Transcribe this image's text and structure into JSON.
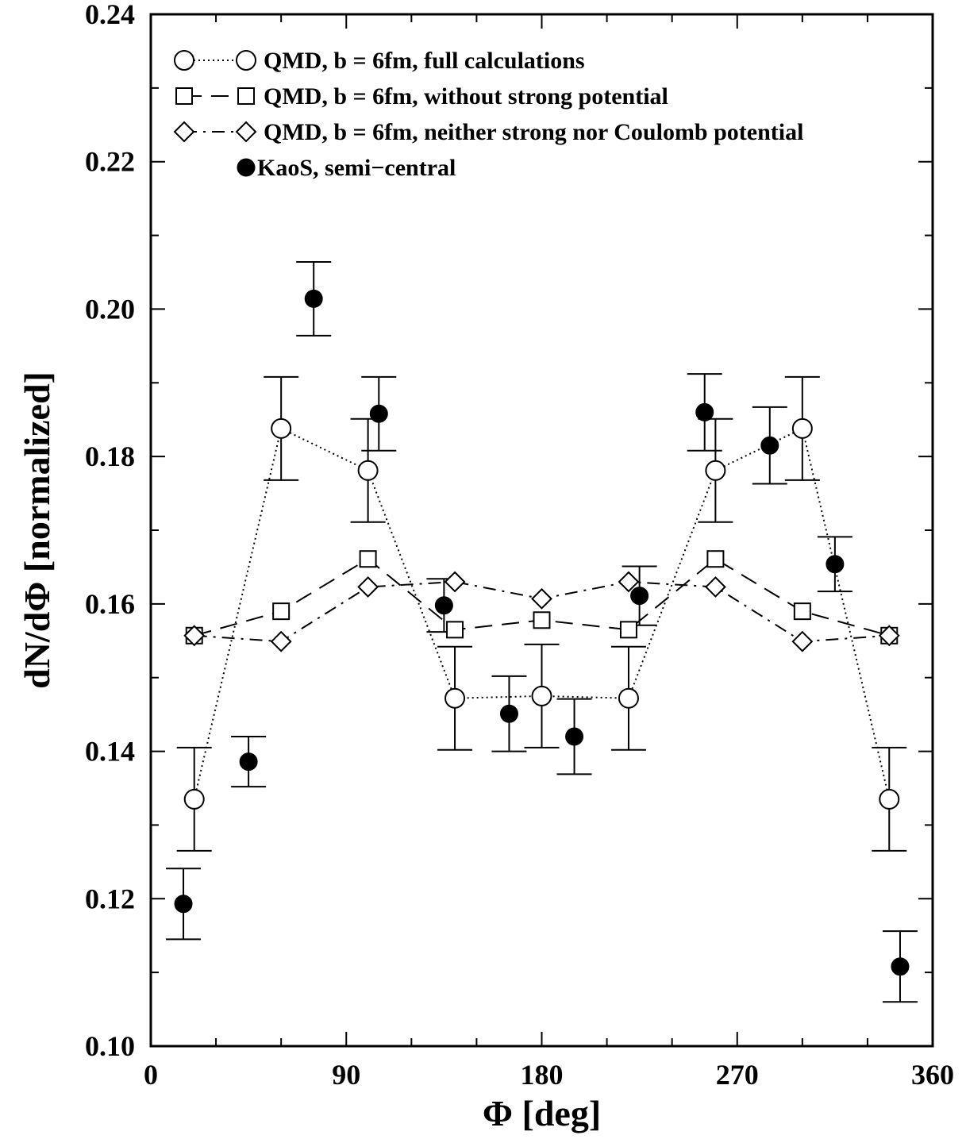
{
  "chart_data": {
    "type": "scatter",
    "title": "",
    "xlabel": "Φ [deg]",
    "ylabel": "dN/dΦ [normalized]",
    "xlim": [
      0,
      360
    ],
    "ylim": [
      0.1,
      0.24
    ],
    "x_ticks": [
      "0",
      "90",
      "180",
      "270",
      "360"
    ],
    "y_ticks": [
      "0.10",
      "0.12",
      "0.14",
      "0.16",
      "0.18",
      "0.20",
      "0.22",
      "0.24"
    ],
    "grid": false,
    "legend_position": "top-left",
    "series": [
      {
        "name": "QMD, b = 6fm, full calculations",
        "marker": "open-circle",
        "line": "dotted",
        "x": [
          20,
          60,
          100,
          140,
          180,
          220,
          260,
          300,
          340
        ],
        "y": [
          0.1335,
          0.1838,
          0.1781,
          0.1472,
          0.1475,
          0.1472,
          0.1781,
          0.1838,
          0.1335
        ],
        "err": [
          0.007,
          0.007,
          0.007,
          0.007,
          0.007,
          0.007,
          0.007,
          0.007,
          0.007
        ]
      },
      {
        "name": "QMD, b = 6fm, without strong potential",
        "marker": "open-square",
        "line": "dashed",
        "x": [
          20,
          60,
          100,
          140,
          180,
          220,
          260,
          300,
          340
        ],
        "y": [
          0.1557,
          0.159,
          0.1661,
          0.1565,
          0.1578,
          0.1565,
          0.1661,
          0.159,
          0.1557
        ]
      },
      {
        "name": "QMD, b = 6fm, neither strong nor Coulomb potential",
        "marker": "open-diamond",
        "line": "dash-dot",
        "x": [
          20,
          60,
          100,
          140,
          180,
          220,
          260,
          300,
          340
        ],
        "y": [
          0.1557,
          0.1549,
          0.1623,
          0.163,
          0.1607,
          0.163,
          0.1623,
          0.1549,
          0.1557
        ]
      },
      {
        "name": "KaoS, semi−central",
        "marker": "filled-circle",
        "line": "none",
        "x": [
          15,
          45,
          75,
          105,
          135,
          165,
          195,
          225,
          255,
          285,
          315,
          345
        ],
        "y": [
          0.1193,
          0.1386,
          0.2014,
          0.1858,
          0.1598,
          0.1451,
          0.142,
          0.1611,
          0.186,
          0.1815,
          0.1654,
          0.1108
        ],
        "err": [
          0.0048,
          0.0034,
          0.005,
          0.005,
          0.0036,
          0.0051,
          0.0051,
          0.004,
          0.0052,
          0.0052,
          0.0037,
          0.0048
        ]
      }
    ]
  }
}
